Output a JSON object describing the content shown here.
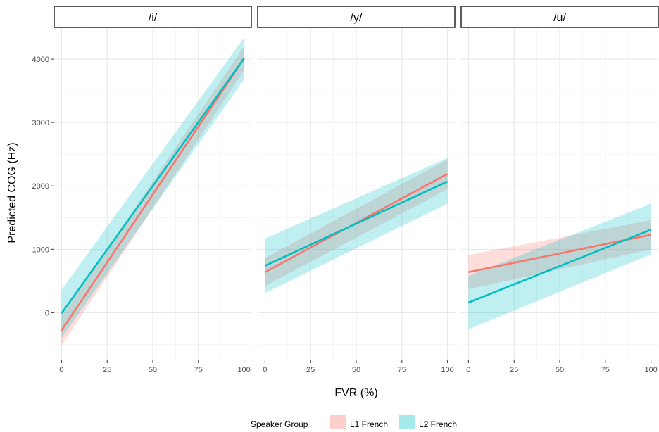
{
  "chart_data": {
    "type": "line",
    "ylabel": "Predicted COG (Hz)",
    "xlabel": "FVR (%)",
    "xlim": [
      -4,
      104
    ],
    "ylim": [
      -750,
      4500
    ],
    "x_ticks": [
      0,
      25,
      50,
      75,
      100
    ],
    "y_ticks": [
      0,
      1000,
      2000,
      3000,
      4000
    ],
    "grid": true,
    "legend": {
      "title": "Speaker Group",
      "position": "bottom",
      "entries": [
        {
          "label": "L1 French",
          "color": "#F8766D"
        },
        {
          "label": "L2 French",
          "color": "#00BFC4"
        }
      ]
    },
    "panels": [
      {
        "label": "/i/",
        "series": [
          {
            "name": "L1 French",
            "color": "#F8766D",
            "x": [
              0,
              100
            ],
            "y": [
              -280,
              4010
            ],
            "lower": [
              -520,
              3820
            ],
            "upper": [
              -60,
              4200
            ]
          },
          {
            "name": "L2 French",
            "color": "#00BFC4",
            "x": [
              0,
              100
            ],
            "y": [
              -10,
              4010
            ],
            "lower": [
              -400,
              3680
            ],
            "upper": [
              360,
              4340
            ]
          }
        ]
      },
      {
        "label": "/y/",
        "series": [
          {
            "name": "L1 French",
            "color": "#F8766D",
            "x": [
              0,
              100
            ],
            "y": [
              640,
              2190
            ],
            "lower": [
              420,
              1950
            ],
            "upper": [
              860,
              2420
            ]
          },
          {
            "name": "L2 French",
            "color": "#00BFC4",
            "x": [
              0,
              100
            ],
            "y": [
              740,
              2070
            ],
            "lower": [
              310,
              1720
            ],
            "upper": [
              1170,
              2440
            ]
          }
        ]
      },
      {
        "label": "/u/",
        "series": [
          {
            "name": "L1 French",
            "color": "#F8766D",
            "x": [
              0,
              100
            ],
            "y": [
              640,
              1230
            ],
            "lower": [
              370,
              1000
            ],
            "upper": [
              910,
              1460
            ]
          },
          {
            "name": "L2 French",
            "color": "#00BFC4",
            "x": [
              0,
              100
            ],
            "y": [
              160,
              1310
            ],
            "lower": [
              -260,
              920
            ],
            "upper": [
              580,
              1720
            ]
          }
        ]
      }
    ]
  }
}
